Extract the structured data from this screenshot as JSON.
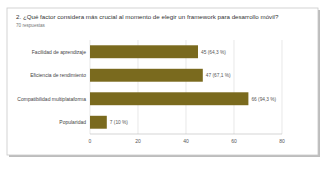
{
  "chart_data": {
    "type": "bar",
    "orientation": "horizontal",
    "title": "2. ¿Qué factor considera más crucial al momento de elegir un framework para desarrollo móvil?",
    "subtitle": "70 respuestas",
    "categories": [
      "Facilidad de aprendizaje",
      "Eficiencia de rendimiento",
      "Compatibilidad multiplataforma",
      "Popularidad"
    ],
    "values": [
      45,
      47,
      66,
      7
    ],
    "value_labels": [
      "45 (64,3 %)",
      "47 (67,1 %)",
      "66 (94,3 %)",
      "7 (10 %)"
    ],
    "data_labels": true,
    "color": "#7a6a1e",
    "xlim": [
      0,
      80
    ],
    "xticks": [
      0,
      20,
      40,
      60,
      80
    ],
    "grid": true
  }
}
